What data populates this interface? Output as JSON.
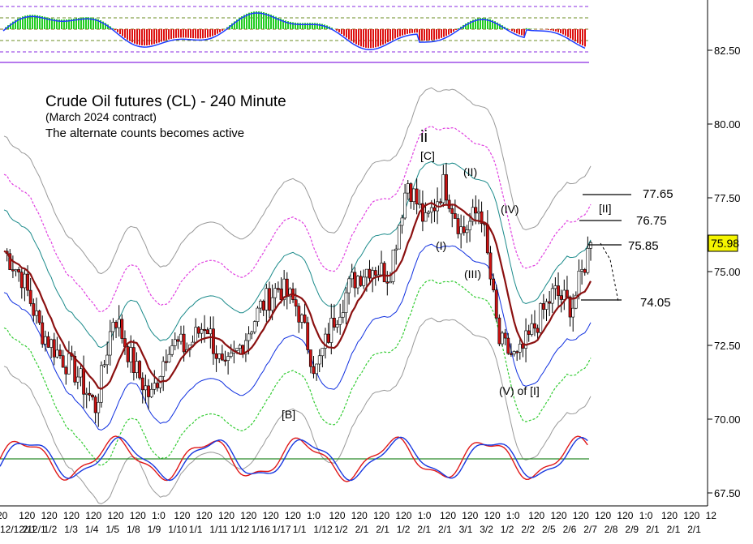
{
  "chart_data": {
    "type": "candlestick",
    "title": "Crude Oil futures (CL) - 240 Minute",
    "subtitle": "(March 2024 contract)",
    "note": "The alternate counts becomes active",
    "current_price": "75.98",
    "y_ticks": [
      "82.50",
      "80.00",
      "77.50",
      "75.00",
      "72.50",
      "70.00",
      "67.50"
    ],
    "y_tick_values": [
      82.5,
      80.0,
      77.5,
      75.0,
      72.5,
      70.0,
      67.5
    ],
    "x_row1": [
      "20",
      "120",
      "120",
      "120",
      "120",
      "120",
      "120",
      "1:0",
      "120",
      "120",
      "120",
      "120",
      "120",
      "120",
      "1:0",
      "120",
      "120",
      "120",
      "120",
      "1:0",
      "120",
      "120",
      "120",
      "1:0",
      "120",
      "120",
      "120",
      "120",
      "120",
      "1:0",
      "120",
      "120",
      "12"
    ],
    "x_row2": [
      "12/12/12/1",
      "2/1",
      "1/2",
      "1/3",
      "1/4",
      "1/5",
      "1/8",
      "1/9",
      "1/10",
      "1/1",
      "1/11",
      "1/12",
      "1/16",
      "1/17",
      "1/1",
      "1/12",
      "1/2",
      "2/1",
      "2/1",
      "1/2",
      "2/1",
      "2/1",
      "3/1",
      "3/2",
      "1/2",
      "2/2",
      "2/5",
      "2/6",
      "2/7",
      "2/8",
      "2/9",
      "2/1",
      "2/1",
      "2/1"
    ],
    "targets": [
      {
        "label": "77.65",
        "value": 77.65
      },
      {
        "label": "76.75",
        "value": 76.75
      },
      {
        "label": "75.85",
        "value": 75.85
      },
      {
        "label": "74.05",
        "value": 74.05
      }
    ],
    "wave_labels": [
      {
        "text": "ii"
      },
      {
        "text": "[C]"
      },
      {
        "text": "(II)"
      },
      {
        "text": "(IV)"
      },
      {
        "text": "[II]"
      },
      {
        "text": "(I)"
      },
      {
        "text": "(III)"
      },
      {
        "text": "(V) of [I]"
      },
      {
        "text": "[B]"
      }
    ],
    "series": [
      {
        "name": "Crude Oil CL 240 Minute",
        "approx_close_path": [
          75.7,
          74.8,
          73.0,
          72.2,
          71.5,
          70.4,
          73.6,
          71.9,
          70.7,
          72.6,
          72.4,
          73.3,
          71.5,
          72.6,
          73.8,
          74.5,
          73.8,
          71.6,
          73.4,
          74.7,
          75.2,
          74.9,
          78.1,
          76.6,
          78.0,
          76.3,
          77.2,
          72.6,
          72.0,
          73.2,
          74.3,
          73.8,
          75.98
        ]
      }
    ]
  }
}
